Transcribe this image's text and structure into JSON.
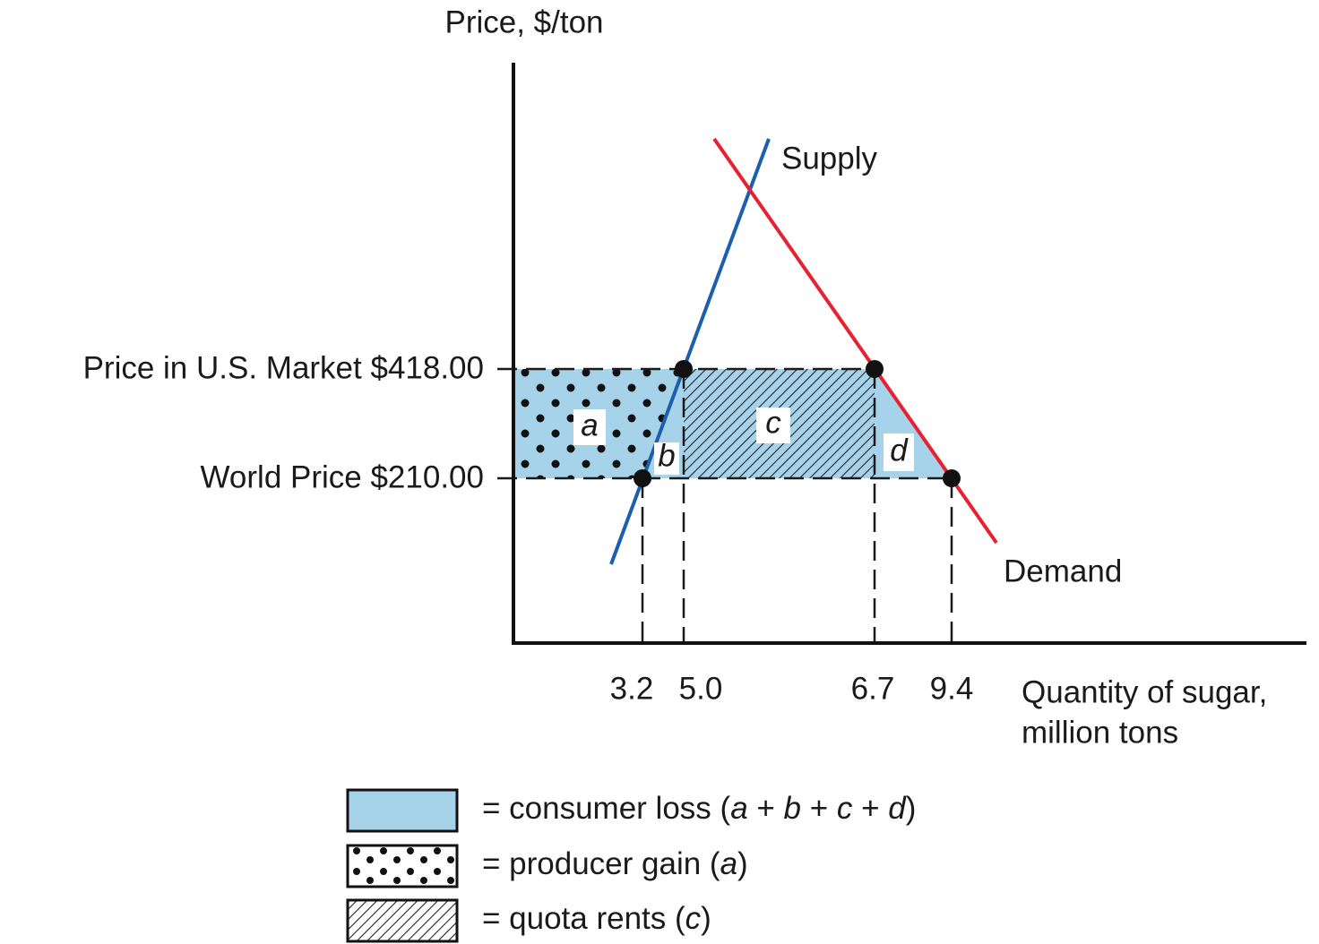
{
  "y_axis_label": "Price, $/ton",
  "x_axis_label": [
    "Quantity of sugar,",
    "million tons"
  ],
  "price_levels": [
    "Price in U.S. Market $418.00",
    "World Price $210.00"
  ],
  "quantities": [
    "3.2",
    "5.0",
    "6.7",
    "9.4"
  ],
  "curves": [
    "Supply",
    "Demand"
  ],
  "areas": [
    "a",
    "b",
    "c",
    "d"
  ],
  "legend": [
    [
      "= consumer loss (",
      "a",
      " + ",
      "b",
      " + ",
      "c",
      " + ",
      "d",
      ")"
    ],
    [
      "= producer gain (",
      "a",
      ")"
    ],
    [
      "= quota rents (",
      "c",
      ")"
    ]
  ]
}
